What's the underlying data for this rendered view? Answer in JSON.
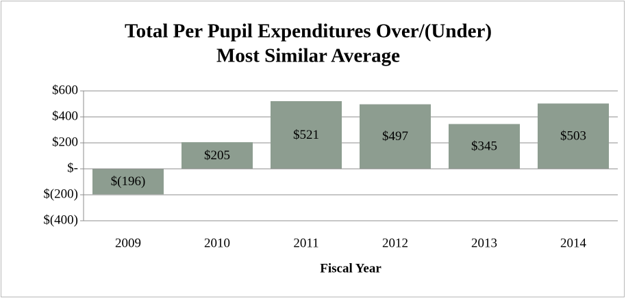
{
  "chart_data": {
    "type": "bar",
    "title": [
      "Total Per Pupil Expenditures Over/(Under)",
      "Most Similar Average"
    ],
    "x_label": "Fiscal Year",
    "categories": [
      "2009",
      "2010",
      "2011",
      "2012",
      "2013",
      "2014"
    ],
    "values": [
      -196,
      205,
      521,
      497,
      345,
      503
    ],
    "value_labels": [
      "$(196)",
      "$205",
      "$521",
      "$497",
      "$345",
      "$503"
    ],
    "color": "#8d9d90",
    "ylim": [
      -400,
      600
    ],
    "yticks": [
      {
        "value": -400,
        "label": "$(400)"
      },
      {
        "value": -200,
        "label": "$(200)"
      },
      {
        "value": 0,
        "label": "$-"
      },
      {
        "value": 200,
        "label": "$200"
      },
      {
        "value": 400,
        "label": "$400"
      },
      {
        "value": 600,
        "label": "$600"
      }
    ],
    "grid": true
  }
}
